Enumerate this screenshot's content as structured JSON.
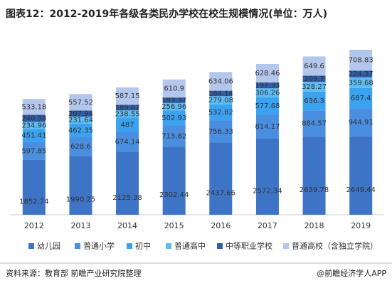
{
  "chart_data": {
    "type": "stacked-bar",
    "title": "图表12：2012-2019年各级各类民办学校在校生规模情况(单位：万人)",
    "categories": [
      "2012",
      "2013",
      "2014",
      "2015",
      "2016",
      "2017",
      "2018",
      "2019"
    ],
    "series": [
      {
        "name": "幼儿园",
        "color": "#3d74c6",
        "values": [
          1852.74,
          1990.25,
          2125.38,
          2302.44,
          2437.66,
          2572.34,
          2639.78,
          2649.44
        ]
      },
      {
        "name": "普通小学",
        "color": "#4a8ee0",
        "values": [
          597.85,
          628.6,
          674.14,
          713.82,
          756.33,
          814.17,
          884.57,
          944.91
        ]
      },
      {
        "name": "初中",
        "color": "#3aa2f0",
        "values": [
          451.41,
          462.35,
          487,
          502.93,
          532.82,
          577.68,
          636.3,
          687.4
        ]
      },
      {
        "name": "普通高中",
        "color": "#5dbdf2",
        "values": [
          234.96,
          231.64,
          238.55,
          256.96,
          279.08,
          306.26,
          328.27,
          359.68
        ]
      },
      {
        "name": "中等职业学校",
        "color": "#2f5ea8",
        "values": [
          240.38,
          207.94,
          189.67,
          183.37,
          184.14,
          197.33,
          209.7,
          224.37
        ]
      },
      {
        "name": "普通高校（含独立学院）",
        "color": "#b3c6ec",
        "values": [
          533.18,
          557.52,
          587.15,
          610.9,
          634.06,
          628.46,
          649.6,
          708.83
        ]
      }
    ]
  },
  "footer": {
    "source": "资料来源：教育部 前瞻产业研究院整理",
    "brand": "@前瞻经济学人APP"
  }
}
